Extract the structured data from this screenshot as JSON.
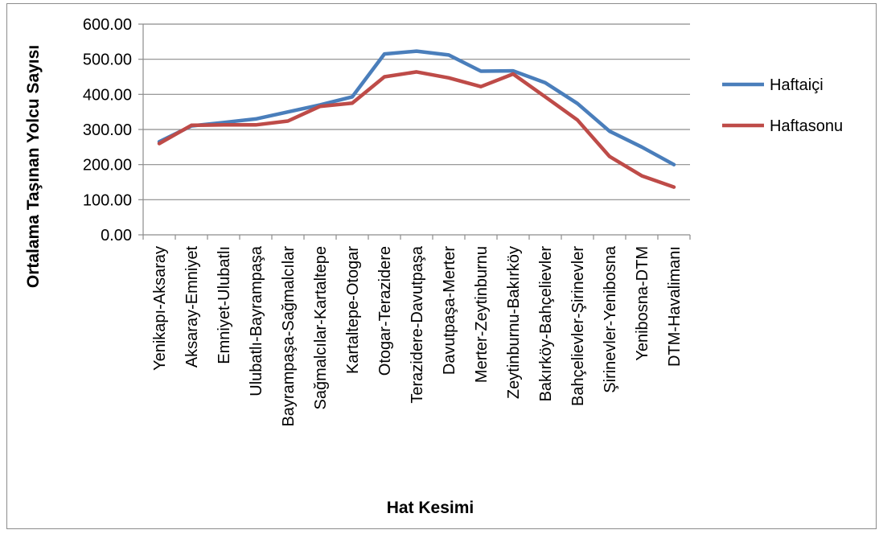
{
  "chart_data": {
    "type": "line",
    "title": "",
    "xlabel": "Hat Kesimi",
    "ylabel": "Ortalama Taşınan Yolcu Sayısı",
    "ylim": [
      0,
      600
    ],
    "yticks": [
      "0.00",
      "100.00",
      "200.00",
      "300.00",
      "400.00",
      "500.00",
      "600.00"
    ],
    "grid": "horizontal",
    "legend_position": "right",
    "categories": [
      "Yenikapı-Aksaray",
      "Aksaray-Emniyet",
      "Emniyet-Ulubatlı",
      "Ulubatlı-Bayrampaşa",
      "Bayrampaşa-Sağmalcılar",
      "Sağmalcılar-Kartaltepe",
      "Kartaltepe-Otogar",
      "Otogar-Terazidere",
      "Terazidere-Davutpaşa",
      "Davutpaşa-Merter",
      "Merter-Zeytinburnu",
      "Zeytinburnu-Bakırköy",
      "Bakırköy-Bahçelievler",
      "Bahçelievler-Şirinevler",
      "Şirinevler-Yenibosna",
      "Yenibosna-DTM",
      "DTM-Havalimanı"
    ],
    "series": [
      {
        "name": "Haftaiçi",
        "color": "#4a7ebb",
        "values": [
          265,
          310,
          320,
          330,
          350,
          370,
          393,
          515,
          523,
          512,
          466,
          467,
          433,
          374,
          295,
          250,
          200
        ]
      },
      {
        "name": "Haftasonu",
        "color": "#be4b48",
        "values": [
          260,
          312,
          313,
          313,
          324,
          366,
          375,
          450,
          464,
          447,
          422,
          458,
          393,
          327,
          223,
          168,
          136
        ]
      }
    ]
  }
}
